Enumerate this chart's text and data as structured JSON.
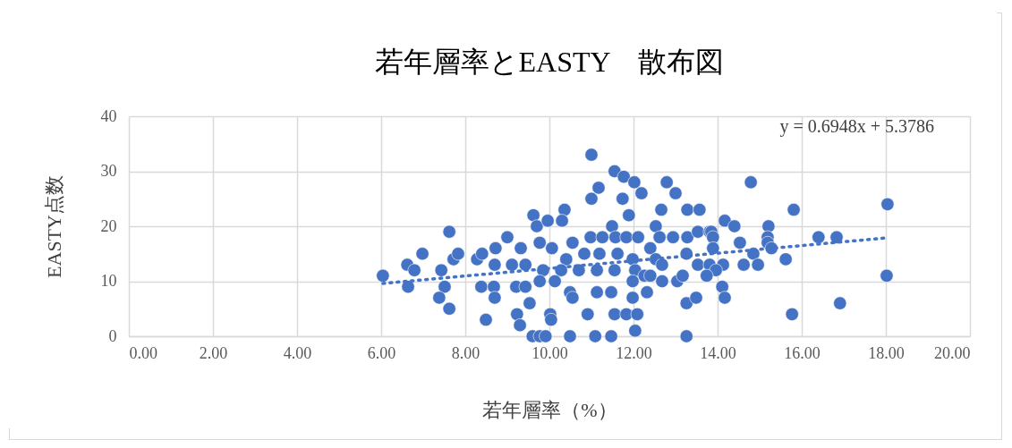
{
  "chart_data": {
    "type": "scatter",
    "title": "若年層率とEASTY　散布図",
    "xlabel": "若年層率（%）",
    "ylabel": "EASTY点数",
    "annotations": [
      "y = 0.6948x + 5.3786"
    ],
    "xlim": [
      0,
      20
    ],
    "ylim": [
      0,
      40
    ],
    "xticks": [
      {
        "value": 0,
        "label": "0.00"
      },
      {
        "value": 2,
        "label": "2.00"
      },
      {
        "value": 4,
        "label": "4.00"
      },
      {
        "value": 6,
        "label": "6.00"
      },
      {
        "value": 8,
        "label": "8.00"
      },
      {
        "value": 10,
        "label": "10.00"
      },
      {
        "value": 12,
        "label": "12.00"
      },
      {
        "value": 14,
        "label": "14.00"
      },
      {
        "value": 16,
        "label": "16.00"
      },
      {
        "value": 18,
        "label": "18.00"
      },
      {
        "value": 20,
        "label": "20.00"
      }
    ],
    "yticks": [
      0,
      10,
      20,
      30,
      40
    ],
    "grid": true,
    "series": [
      {
        "marker": "circle",
        "color": "#4472c4",
        "x": [
          6.04,
          6.62,
          6.64,
          6.79,
          6.98,
          7.43,
          7.51,
          7.38,
          7.62,
          7.62,
          7.72,
          7.83,
          8.28,
          8.4,
          8.72,
          8.7,
          8.38,
          8.68,
          8.7,
          8.49,
          9.0,
          9.32,
          9.11,
          9.43,
          9.21,
          9.43,
          9.53,
          9.23,
          9.3,
          9.62,
          9.7,
          9.6,
          11.0,
          11.55,
          11.77,
          12.02,
          11.17,
          11.0,
          11.74,
          12.19,
          12.79,
          13.0,
          11.89,
          12.66,
          10.36,
          13.28,
          13.57,
          9.96,
          10.3,
          11.49,
          12.53,
          10.98,
          11.26,
          11.57,
          11.83,
          12.11,
          12.62,
          12.94,
          13.28,
          13.53,
          13.81,
          9.77,
          10.06,
          10.55,
          10.4,
          10.83,
          11.19,
          11.62,
          11.98,
          12.4,
          12.53,
          12.68,
          13.26,
          13.53,
          13.81,
          9.85,
          10.28,
          10.7,
          11.13,
          11.55,
          12.04,
          12.26,
          9.77,
          10.13,
          10.49,
          10.55,
          11.13,
          11.47,
          11.98,
          12.4,
          12.68,
          13.04,
          13.17,
          11.98,
          12.32,
          13.26,
          13.49,
          10.02,
          10.04,
          10.91,
          11.55,
          11.83,
          12.09,
          12.04,
          9.77,
          9.91,
          10.49,
          11.09,
          11.47,
          13.26,
          14.79,
          15.81,
          18.04,
          14.17,
          14.4,
          15.21,
          13.85,
          13.89,
          14.53,
          15.19,
          15.19,
          15.28,
          16.4,
          16.83,
          13.89,
          14.85,
          14.96,
          14.62,
          15.62,
          14.13,
          13.96,
          13.74,
          14.11,
          14.17,
          15.77,
          16.91,
          18.02
        ],
        "values": [
          11,
          13,
          9,
          12,
          15,
          12,
          9,
          7,
          5,
          19,
          14,
          15,
          14,
          15,
          16,
          13,
          9,
          9,
          7,
          3,
          18,
          16,
          13,
          13,
          9,
          9,
          6,
          4,
          2,
          22,
          20,
          0,
          33,
          30,
          29,
          28,
          27,
          25,
          25,
          26,
          28,
          26,
          22,
          23,
          23,
          23,
          23,
          21,
          21,
          20,
          20,
          18,
          18,
          18,
          18,
          18,
          18,
          18,
          18,
          19,
          19,
          17,
          16,
          17,
          14,
          15,
          15,
          15,
          14,
          16,
          14,
          13,
          15,
          13,
          13,
          12,
          12,
          12,
          12,
          12,
          12,
          11,
          10,
          10,
          8,
          7,
          8,
          8,
          10,
          11,
          10,
          10,
          11,
          7,
          8,
          6,
          7,
          4,
          3,
          4,
          4,
          4,
          4,
          1,
          0,
          0,
          0,
          0,
          0,
          0,
          28,
          23,
          24,
          21,
          20,
          20,
          19,
          18,
          17,
          18,
          17,
          16,
          18,
          18,
          16,
          15,
          13,
          13,
          14,
          13,
          12,
          11,
          9,
          7,
          4,
          6,
          11
        ]
      },
      {
        "type": "line",
        "color": "#4472c4",
        "line_style": "dotted",
        "x": [
          6.04,
          18.04
        ],
        "values": [
          9.6,
          17.9
        ]
      }
    ]
  }
}
